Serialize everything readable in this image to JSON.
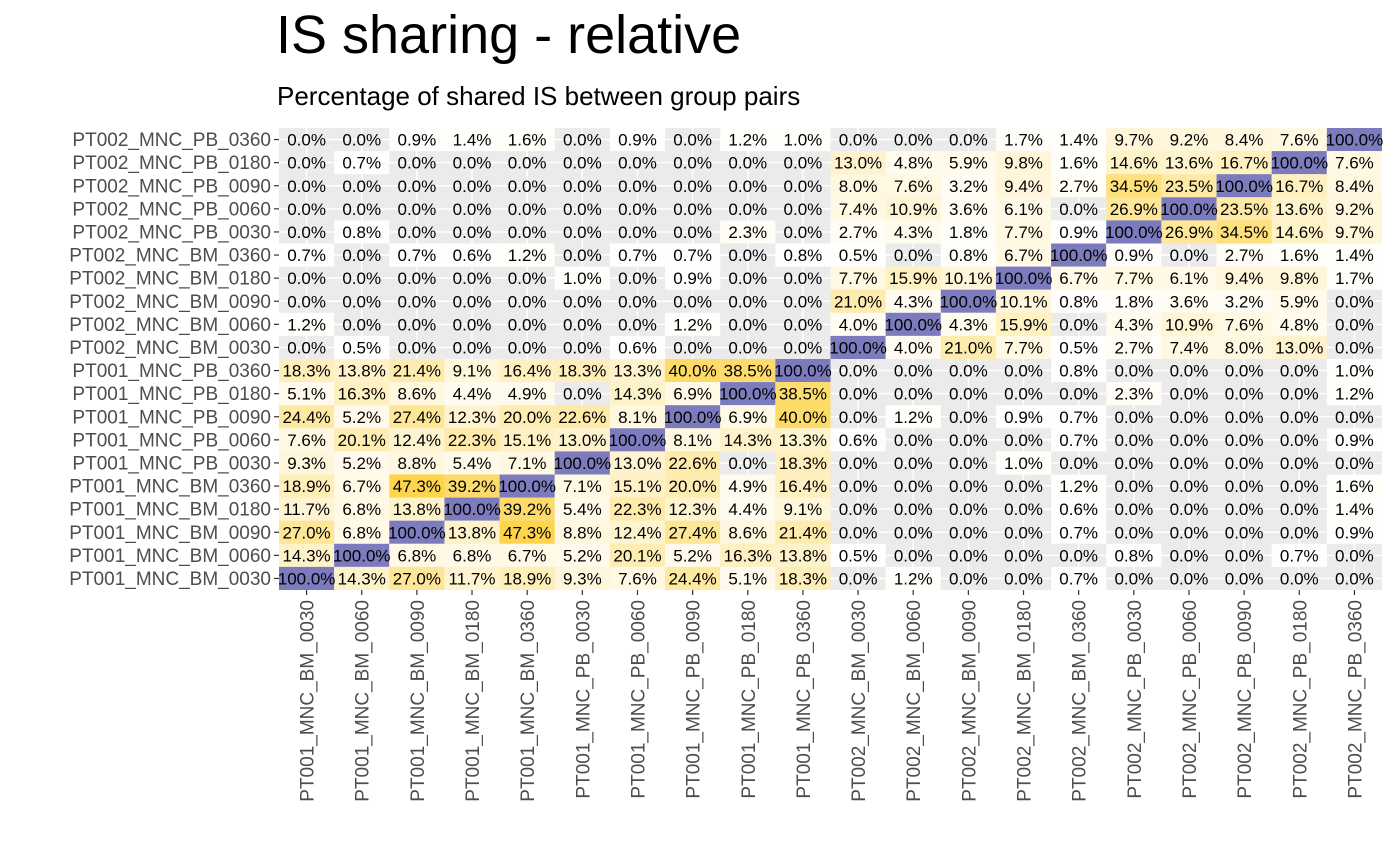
{
  "chart_data": {
    "type": "heatmap",
    "title": "IS sharing - relative",
    "subtitle": "Percentage of shared IS between group pairs",
    "xlabel": "",
    "ylabel": "",
    "x_categories": [
      "PT001_MNC_BM_0030",
      "PT001_MNC_BM_0060",
      "PT001_MNC_BM_0090",
      "PT001_MNC_BM_0180",
      "PT001_MNC_BM_0360",
      "PT001_MNC_PB_0030",
      "PT001_MNC_PB_0060",
      "PT001_MNC_PB_0090",
      "PT001_MNC_PB_0180",
      "PT001_MNC_PB_0360",
      "PT002_MNC_BM_0030",
      "PT002_MNC_BM_0060",
      "PT002_MNC_BM_0090",
      "PT002_MNC_BM_0180",
      "PT002_MNC_BM_0360",
      "PT002_MNC_PB_0030",
      "PT002_MNC_PB_0060",
      "PT002_MNC_PB_0090",
      "PT002_MNC_PB_0180",
      "PT002_MNC_PB_0360"
    ],
    "y_categories": [
      "PT002_MNC_PB_0360",
      "PT002_MNC_PB_0180",
      "PT002_MNC_PB_0090",
      "PT002_MNC_PB_0060",
      "PT002_MNC_PB_0030",
      "PT002_MNC_BM_0360",
      "PT002_MNC_BM_0180",
      "PT002_MNC_BM_0090",
      "PT002_MNC_BM_0060",
      "PT002_MNC_BM_0030",
      "PT001_MNC_PB_0360",
      "PT001_MNC_PB_0180",
      "PT001_MNC_PB_0090",
      "PT001_MNC_PB_0060",
      "PT001_MNC_PB_0030",
      "PT001_MNC_BM_0360",
      "PT001_MNC_BM_0180",
      "PT001_MNC_BM_0090",
      "PT001_MNC_BM_0060",
      "PT001_MNC_BM_0030"
    ],
    "values": [
      [
        0.0,
        0.0,
        0.9,
        1.4,
        1.6,
        0.0,
        0.9,
        0.0,
        1.2,
        1.0,
        0.0,
        0.0,
        0.0,
        1.7,
        1.4,
        9.7,
        9.2,
        8.4,
        7.6,
        100.0
      ],
      [
        0.0,
        0.7,
        0.0,
        0.0,
        0.0,
        0.0,
        0.0,
        0.0,
        0.0,
        0.0,
        13.0,
        4.8,
        5.9,
        9.8,
        1.6,
        14.6,
        13.6,
        16.7,
        100.0,
        7.6
      ],
      [
        0.0,
        0.0,
        0.0,
        0.0,
        0.0,
        0.0,
        0.0,
        0.0,
        0.0,
        0.0,
        8.0,
        7.6,
        3.2,
        9.4,
        2.7,
        34.5,
        23.5,
        100.0,
        16.7,
        8.4
      ],
      [
        0.0,
        0.0,
        0.0,
        0.0,
        0.0,
        0.0,
        0.0,
        0.0,
        0.0,
        0.0,
        7.4,
        10.9,
        3.6,
        6.1,
        0.0,
        26.9,
        100.0,
        23.5,
        13.6,
        9.2
      ],
      [
        0.0,
        0.8,
        0.0,
        0.0,
        0.0,
        0.0,
        0.0,
        0.0,
        2.3,
        0.0,
        2.7,
        4.3,
        1.8,
        7.7,
        0.9,
        100.0,
        26.9,
        34.5,
        14.6,
        9.7
      ],
      [
        0.7,
        0.0,
        0.7,
        0.6,
        1.2,
        0.0,
        0.7,
        0.7,
        0.0,
        0.8,
        0.5,
        0.0,
        0.8,
        6.7,
        100.0,
        0.9,
        0.0,
        2.7,
        1.6,
        1.4
      ],
      [
        0.0,
        0.0,
        0.0,
        0.0,
        0.0,
        1.0,
        0.0,
        0.9,
        0.0,
        0.0,
        7.7,
        15.9,
        10.1,
        100.0,
        6.7,
        7.7,
        6.1,
        9.4,
        9.8,
        1.7
      ],
      [
        0.0,
        0.0,
        0.0,
        0.0,
        0.0,
        0.0,
        0.0,
        0.0,
        0.0,
        0.0,
        21.0,
        4.3,
        100.0,
        10.1,
        0.8,
        1.8,
        3.6,
        3.2,
        5.9,
        0.0
      ],
      [
        1.2,
        0.0,
        0.0,
        0.0,
        0.0,
        0.0,
        0.0,
        1.2,
        0.0,
        0.0,
        4.0,
        100.0,
        4.3,
        15.9,
        0.0,
        4.3,
        10.9,
        7.6,
        4.8,
        0.0
      ],
      [
        0.0,
        0.5,
        0.0,
        0.0,
        0.0,
        0.0,
        0.6,
        0.0,
        0.0,
        0.0,
        100.0,
        4.0,
        21.0,
        7.7,
        0.5,
        2.7,
        7.4,
        8.0,
        13.0,
        0.0
      ],
      [
        18.3,
        13.8,
        21.4,
        9.1,
        16.4,
        18.3,
        13.3,
        40.0,
        38.5,
        100.0,
        0.0,
        0.0,
        0.0,
        0.0,
        0.8,
        0.0,
        0.0,
        0.0,
        0.0,
        1.0
      ],
      [
        5.1,
        16.3,
        8.6,
        4.4,
        4.9,
        0.0,
        14.3,
        6.9,
        100.0,
        38.5,
        0.0,
        0.0,
        0.0,
        0.0,
        0.0,
        2.3,
        0.0,
        0.0,
        0.0,
        1.2
      ],
      [
        24.4,
        5.2,
        27.4,
        12.3,
        20.0,
        22.6,
        8.1,
        100.0,
        6.9,
        40.0,
        0.0,
        1.2,
        0.0,
        0.9,
        0.7,
        0.0,
        0.0,
        0.0,
        0.0,
        0.0
      ],
      [
        7.6,
        20.1,
        12.4,
        22.3,
        15.1,
        13.0,
        100.0,
        8.1,
        14.3,
        13.3,
        0.6,
        0.0,
        0.0,
        0.0,
        0.7,
        0.0,
        0.0,
        0.0,
        0.0,
        0.9
      ],
      [
        9.3,
        5.2,
        8.8,
        5.4,
        7.1,
        100.0,
        13.0,
        22.6,
        0.0,
        18.3,
        0.0,
        0.0,
        0.0,
        1.0,
        0.0,
        0.0,
        0.0,
        0.0,
        0.0,
        0.0
      ],
      [
        18.9,
        6.7,
        47.3,
        39.2,
        100.0,
        7.1,
        15.1,
        20.0,
        4.9,
        16.4,
        0.0,
        0.0,
        0.0,
        0.0,
        1.2,
        0.0,
        0.0,
        0.0,
        0.0,
        1.6
      ],
      [
        11.7,
        6.8,
        13.8,
        100.0,
        39.2,
        5.4,
        22.3,
        12.3,
        4.4,
        9.1,
        0.0,
        0.0,
        0.0,
        0.0,
        0.6,
        0.0,
        0.0,
        0.0,
        0.0,
        1.4
      ],
      [
        27.0,
        6.8,
        100.0,
        13.8,
        47.3,
        8.8,
        12.4,
        27.4,
        8.6,
        21.4,
        0.0,
        0.0,
        0.0,
        0.0,
        0.7,
        0.0,
        0.0,
        0.0,
        0.0,
        0.9
      ],
      [
        14.3,
        100.0,
        6.8,
        6.8,
        6.7,
        5.2,
        20.1,
        5.2,
        16.3,
        13.8,
        0.5,
        0.0,
        0.0,
        0.0,
        0.0,
        0.8,
        0.0,
        0.0,
        0.7,
        0.0
      ],
      [
        100.0,
        14.3,
        27.0,
        11.7,
        18.9,
        9.3,
        7.6,
        24.4,
        5.1,
        18.3,
        0.0,
        1.2,
        0.0,
        0.0,
        0.7,
        0.0,
        0.0,
        0.0,
        0.0,
        0.0
      ]
    ],
    "value_suffix": "%",
    "diagonal_color": "#7b7bbd",
    "color_low": "#ffffff",
    "color_high": "#fdd44b",
    "panel_background": "#ebebeb",
    "grid": true,
    "legend": "none"
  }
}
